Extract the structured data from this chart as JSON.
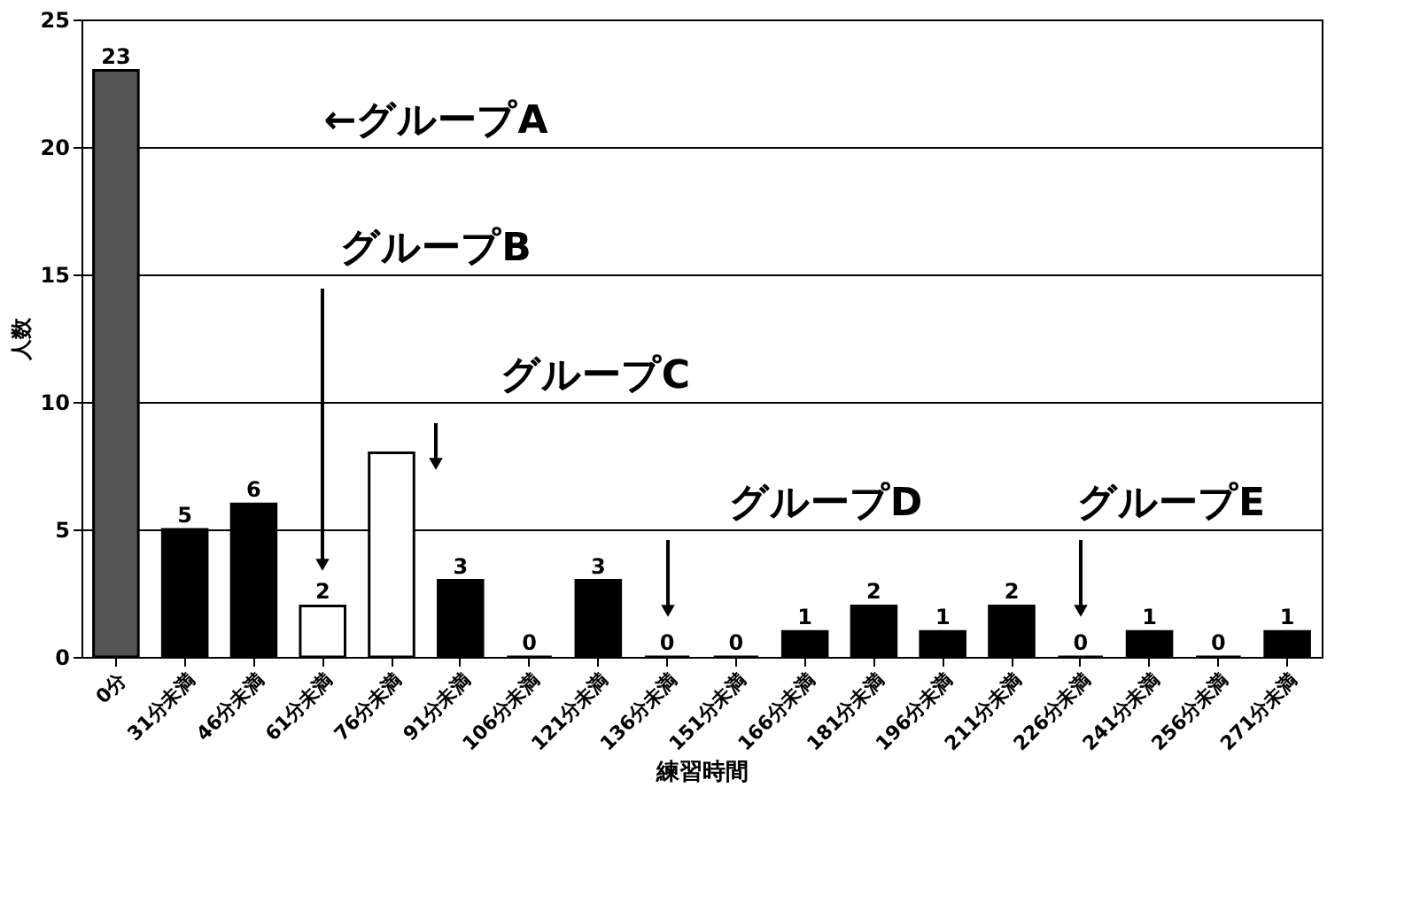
{
  "chart_data": {
    "type": "bar",
    "xlabel": "練習時間",
    "ylabel": "人数",
    "categories": [
      "0分",
      "31分未満",
      "46分未満",
      "61分未満",
      "76分未満",
      "91分未満",
      "106分未満",
      "121分未満",
      "136分未満",
      "151分未満",
      "166分未満",
      "181分未満",
      "196分未満",
      "211分未満",
      "226分未満",
      "241分未満",
      "256分未満",
      "271分未満"
    ],
    "values": [
      23,
      5,
      6,
      2,
      8,
      3,
      0,
      3,
      0,
      0,
      1,
      2,
      1,
      2,
      0,
      1,
      0,
      1
    ],
    "value_labels": [
      "23",
      "5",
      "6",
      "2",
      null,
      "3",
      "0",
      "3",
      "0",
      "0",
      "1",
      "2",
      "1",
      "2",
      "0",
      "1",
      "0",
      "1"
    ],
    "colors": [
      "#555555",
      "#000000",
      "#000000",
      "#ffffff",
      "#ffffff",
      "#000000",
      "#000000",
      "#000000",
      "#000000",
      "#000000",
      "#000000",
      "#000000",
      "#000000",
      "#000000",
      "#000000",
      "#000000",
      "#000000",
      "#000000"
    ],
    "ylim": [
      0,
      25
    ],
    "yticks": [
      0,
      5,
      10,
      15,
      20,
      25
    ],
    "grid": "y",
    "annotations": [
      "←グループA",
      "グループB",
      "グループC",
      "グループD",
      "グループE"
    ]
  }
}
